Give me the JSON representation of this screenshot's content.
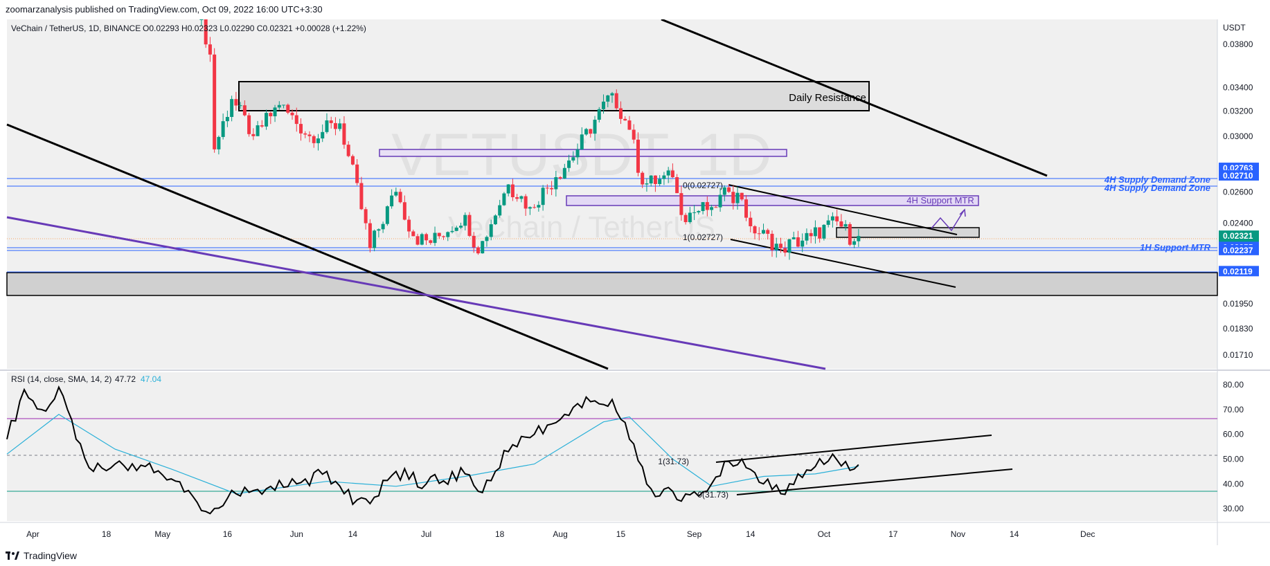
{
  "header": {
    "publish_line": "zoomarzanalysis published on TradingView.com, Oct 09, 2022 16:00 UTC+3:30"
  },
  "symbol": {
    "name": "VeChain / TetherUS, 1D, BINANCE",
    "ohlc": "O0.02293 H0.02323 L0.02290 C0.02321 +0.00028 (+1.22%)",
    "watermark_main": "VETUSDT, 1D",
    "watermark_sub": "VeChain / TetherUS"
  },
  "price_axis": {
    "currency": "USDT",
    "ticks": [
      0.038,
      0.034,
      0.032,
      0.03,
      0.026,
      0.024,
      0.0195,
      0.0183,
      0.0171
    ],
    "tick_labels": [
      "0.03800",
      "0.03400",
      "0.03200",
      "0.03000",
      "0.02600",
      "0.02400",
      "0.01950",
      "0.01830",
      "0.01710"
    ],
    "badges": [
      {
        "label": "0.02763",
        "value": 0.02763,
        "color": "#2962ff"
      },
      {
        "label": "0.02710",
        "value": 0.0271,
        "color": "#2962ff"
      },
      {
        "label": "0.02321",
        "value": 0.02321,
        "color": "#089981",
        "sub": "11:29:37"
      },
      {
        "label": "0.02255",
        "value": 0.02255,
        "color": "#2962ff"
      },
      {
        "label": "0.02237",
        "value": 0.02237,
        "color": "#2962ff"
      },
      {
        "label": "0.02119",
        "value": 0.02119,
        "color": "#2962ff"
      }
    ]
  },
  "time_axis": {
    "labels": [
      "Apr",
      "18",
      "May",
      "16",
      "Jun",
      "14",
      "Jul",
      "18",
      "Aug",
      "15",
      "Sep",
      "14",
      "Oct",
      "17",
      "Nov",
      "14",
      "Dec"
    ]
  },
  "annotations": {
    "daily_resistance": "Daily Resistance",
    "support_4h": "4H Support MTR",
    "supply_zone_1": "4H Supply Demand Zone",
    "supply_zone_2": "4H Supply Demand Zone",
    "support_1h": "1H Support MTR",
    "fib_top": "0(0.02727)",
    "fib_bottom": "1(0.02727)",
    "rsi_fib_top": "1(31.73)",
    "rsi_fib_bottom": "0(31.73)"
  },
  "rsi": {
    "label": "RSI (14, close, SMA, 14, 2)",
    "value": "47.72",
    "sma_value": "47.04",
    "ticks": [
      80,
      70,
      60,
      50,
      40,
      30
    ],
    "tick_labels": [
      "80.00",
      "70.00",
      "60.00",
      "50.00",
      "40.00",
      "30.00"
    ],
    "upper_band": 66.5,
    "lower_band": 33.5,
    "mid": 50
  },
  "colors": {
    "up": "#089981",
    "down": "#f23645",
    "zone_blue": "#2962ff",
    "purple": "#673ab7",
    "rsi_line": "#000000",
    "rsi_sma": "#2ab0d8"
  },
  "footer": {
    "brand": "TradingView"
  },
  "chart_data": [
    {
      "type": "candlestick",
      "title": "VeChain / TetherUS, 1D, BINANCE",
      "ylabel": "USDT",
      "ylim": [
        0.0165,
        0.0405
      ],
      "x_range": [
        "2022-03-26",
        "2022-12-31"
      ],
      "x_labels": [
        "Apr",
        "18",
        "May",
        "16",
        "Jun",
        "14",
        "Jul",
        "18",
        "Aug",
        "15",
        "Sep",
        "14",
        "Oct",
        "17",
        "Nov",
        "14",
        "Dec"
      ],
      "anchors": [
        {
          "date": "2022-05-10",
          "close": 0.0405
        },
        {
          "date": "2022-05-12",
          "close": 0.037
        },
        {
          "date": "2022-05-13",
          "close": 0.029
        },
        {
          "date": "2022-05-17",
          "close": 0.033
        },
        {
          "date": "2022-05-22",
          "close": 0.03
        },
        {
          "date": "2022-05-28",
          "close": 0.0325
        },
        {
          "date": "2022-06-04",
          "close": 0.03
        },
        {
          "date": "2022-06-11",
          "close": 0.031
        },
        {
          "date": "2022-06-13",
          "close": 0.0285
        },
        {
          "date": "2022-06-18",
          "close": 0.0225
        },
        {
          "date": "2022-06-24",
          "close": 0.026
        },
        {
          "date": "2022-06-28",
          "close": 0.0232
        },
        {
          "date": "2022-07-02",
          "close": 0.0228
        },
        {
          "date": "2022-07-10",
          "close": 0.0245
        },
        {
          "date": "2022-07-13",
          "close": 0.0222
        },
        {
          "date": "2022-07-20",
          "close": 0.0265
        },
        {
          "date": "2022-07-25",
          "close": 0.025
        },
        {
          "date": "2022-07-31",
          "close": 0.027
        },
        {
          "date": "2022-08-05",
          "close": 0.029
        },
        {
          "date": "2022-08-13",
          "close": 0.0335
        },
        {
          "date": "2022-08-17",
          "close": 0.0305
        },
        {
          "date": "2022-08-20",
          "close": 0.0265
        },
        {
          "date": "2022-08-27",
          "close": 0.027
        },
        {
          "date": "2022-08-29",
          "close": 0.0245
        },
        {
          "date": "2022-09-05",
          "close": 0.025
        },
        {
          "date": "2022-09-09",
          "close": 0.026
        },
        {
          "date": "2022-09-12",
          "close": 0.0255
        },
        {
          "date": "2022-09-14",
          "close": 0.0238
        },
        {
          "date": "2022-09-21",
          "close": 0.0225
        },
        {
          "date": "2022-09-28",
          "close": 0.0232
        },
        {
          "date": "2022-10-04",
          "close": 0.0241
        },
        {
          "date": "2022-10-08",
          "close": 0.0229
        },
        {
          "date": "2022-10-09",
          "close": 0.02321
        }
      ],
      "last": {
        "open": 0.02293,
        "high": 0.02323,
        "low": 0.0229,
        "close": 0.02321
      }
    },
    {
      "type": "line",
      "title": "RSI (14, close, SMA, 14, 2)",
      "ylim": [
        25,
        85
      ],
      "series": [
        {
          "name": "RSI",
          "points": [
            {
              "x": "2022-03-26",
              "y": 58
            },
            {
              "x": "2022-03-30",
              "y": 78
            },
            {
              "x": "2022-04-03",
              "y": 70
            },
            {
              "x": "2022-04-07",
              "y": 79
            },
            {
              "x": "2022-04-11",
              "y": 58
            },
            {
              "x": "2022-04-15",
              "y": 45
            },
            {
              "x": "2022-04-20",
              "y": 48
            },
            {
              "x": "2022-04-27",
              "y": 47
            },
            {
              "x": "2022-05-03",
              "y": 42
            },
            {
              "x": "2022-05-08",
              "y": 35
            },
            {
              "x": "2022-05-12",
              "y": 28
            },
            {
              "x": "2022-05-18",
              "y": 36
            },
            {
              "x": "2022-05-25",
              "y": 38
            },
            {
              "x": "2022-06-01",
              "y": 40
            },
            {
              "x": "2022-06-08",
              "y": 45
            },
            {
              "x": "2022-06-12",
              "y": 36
            },
            {
              "x": "2022-06-18",
              "y": 32
            },
            {
              "x": "2022-06-24",
              "y": 45
            },
            {
              "x": "2022-07-01",
              "y": 40
            },
            {
              "x": "2022-07-10",
              "y": 44
            },
            {
              "x": "2022-07-13",
              "y": 37
            },
            {
              "x": "2022-07-20",
              "y": 53
            },
            {
              "x": "2022-07-26",
              "y": 60
            },
            {
              "x": "2022-08-02",
              "y": 68
            },
            {
              "x": "2022-08-07",
              "y": 75
            },
            {
              "x": "2022-08-11",
              "y": 72
            },
            {
              "x": "2022-08-13",
              "y": 74
            },
            {
              "x": "2022-08-17",
              "y": 58
            },
            {
              "x": "2022-08-22",
              "y": 38
            },
            {
              "x": "2022-08-27",
              "y": 37
            },
            {
              "x": "2022-08-29",
              "y": 33
            },
            {
              "x": "2022-09-05",
              "y": 40
            },
            {
              "x": "2022-09-09",
              "y": 49
            },
            {
              "x": "2022-09-12",
              "y": 50
            },
            {
              "x": "2022-09-17",
              "y": 40
            },
            {
              "x": "2022-09-21",
              "y": 36
            },
            {
              "x": "2022-09-25",
              "y": 44
            },
            {
              "x": "2022-09-29",
              "y": 47
            },
            {
              "x": "2022-10-03",
              "y": 52
            },
            {
              "x": "2022-10-06",
              "y": 49
            },
            {
              "x": "2022-10-08",
              "y": 46
            },
            {
              "x": "2022-10-09",
              "y": 47.72
            }
          ]
        },
        {
          "name": "RSI-based MA",
          "points": [
            {
              "x": "2022-03-26",
              "y": 52
            },
            {
              "x": "2022-04-07",
              "y": 68
            },
            {
              "x": "2022-04-20",
              "y": 54
            },
            {
              "x": "2022-05-03",
              "y": 46
            },
            {
              "x": "2022-05-18",
              "y": 36
            },
            {
              "x": "2022-06-08",
              "y": 41
            },
            {
              "x": "2022-06-24",
              "y": 39
            },
            {
              "x": "2022-07-10",
              "y": 43
            },
            {
              "x": "2022-07-26",
              "y": 48
            },
            {
              "x": "2022-08-11",
              "y": 65
            },
            {
              "x": "2022-08-17",
              "y": 67
            },
            {
              "x": "2022-08-27",
              "y": 50
            },
            {
              "x": "2022-09-05",
              "y": 39
            },
            {
              "x": "2022-09-17",
              "y": 43
            },
            {
              "x": "2022-09-29",
              "y": 44
            },
            {
              "x": "2022-10-09",
              "y": 47.04
            }
          ]
        }
      ]
    }
  ]
}
